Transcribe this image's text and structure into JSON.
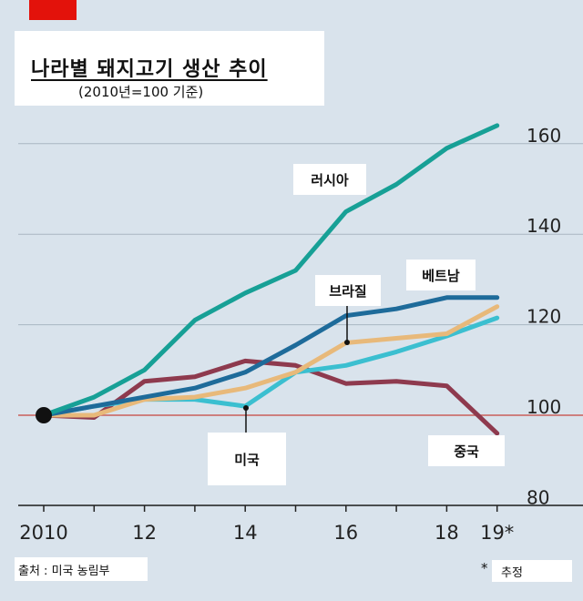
{
  "title": "나라별 돼지고기 생산 추이",
  "subtitle": "(2010년=100 기준)",
  "source_note": "출처 :  미국 농림부",
  "estimate_marker": "*",
  "estimate_note": "추정",
  "chart_data": {
    "type": "line",
    "x": [
      2010,
      2011,
      2012,
      2013,
      2014,
      2015,
      2016,
      2017,
      2018,
      2019
    ],
    "x_tick_labels": [
      "2010",
      "12",
      "14",
      "16",
      "18",
      "19*"
    ],
    "x_tick_values": [
      2010,
      2012,
      2014,
      2016,
      2018,
      2019
    ],
    "y_tick_labels": [
      "80",
      "100",
      "120",
      "140",
      "160"
    ],
    "y_tick_values": [
      80,
      100,
      120,
      140,
      160
    ],
    "ylim": [
      80,
      163
    ],
    "reference_line": 100,
    "grid": true,
    "series": [
      {
        "name": "러시아",
        "color": "#17a096",
        "values": [
          100,
          104,
          110,
          121,
          127,
          132,
          145,
          151,
          159,
          164
        ]
      },
      {
        "name": "베트남",
        "color": "#1e6b9a",
        "values": [
          100,
          102,
          104,
          106,
          109.5,
          115.5,
          122,
          123.5,
          126,
          126
        ]
      },
      {
        "name": "브라질",
        "color": "#e8b97a",
        "values": [
          100,
          100,
          103.5,
          104,
          106,
          109.5,
          116,
          117,
          118,
          124
        ]
      },
      {
        "name": "미국",
        "color": "#3bbfd0",
        "values": [
          100,
          102,
          103.5,
          103.5,
          102,
          109.5,
          111,
          114,
          117.5,
          121.5
        ]
      },
      {
        "name": "중국",
        "color": "#8e3a4e",
        "values": [
          100,
          99.5,
          107.5,
          108.5,
          112,
          111,
          107,
          107.5,
          106.5,
          96
        ]
      }
    ]
  }
}
